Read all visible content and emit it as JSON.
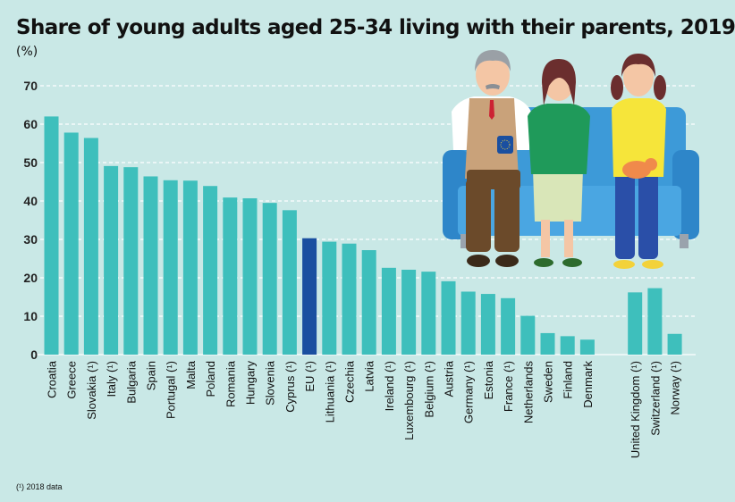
{
  "chart_data": {
    "type": "bar",
    "title": "Share of young adults aged 25-34 living with their parents, 2019",
    "unit": "(%)",
    "footnote": "(¹) 2018 data",
    "ylim": [
      0,
      70
    ],
    "yticks": [
      0,
      10,
      20,
      30,
      40,
      50,
      60,
      70
    ],
    "grid": true,
    "categories": [
      "Croatia",
      "Greece",
      "Slovakia (¹)",
      "Italy (¹)",
      "Bulgaria",
      "Spain",
      "Portugal (¹)",
      "Malta",
      "Poland",
      "Romania",
      "Hungary",
      "Slovenia",
      "Cyprus (¹)",
      "EU (¹)",
      "Lithuania (¹)",
      "Czechia",
      "Latvia",
      "Ireland (¹)",
      "Luxembourg (¹)",
      "Belgium (¹)",
      "Austria",
      "Germany (¹)",
      "Estonia",
      "France (¹)",
      "Netherlands",
      "Sweden",
      "Finland",
      "Denmark",
      "United Kingdom (¹)",
      "Switzerland (¹)",
      "Norway (¹)"
    ],
    "values": [
      62.0,
      57.8,
      56.4,
      49.1,
      48.8,
      46.4,
      45.4,
      45.3,
      43.9,
      40.9,
      40.7,
      39.5,
      37.6,
      30.3,
      29.4,
      28.9,
      27.2,
      22.6,
      22.1,
      21.6,
      19.1,
      16.4,
      15.8,
      14.7,
      10.1,
      5.6,
      4.8,
      3.9,
      16.2,
      17.3,
      5.4
    ],
    "highlight": "EU (¹)",
    "colors": {
      "bar": "#3ebfbc",
      "highlight": "#1a4fa0",
      "background": "#c9e8e6",
      "grid": "#ffffff"
    }
  },
  "illustration": {
    "icon": "family-on-sofa-illustration"
  }
}
